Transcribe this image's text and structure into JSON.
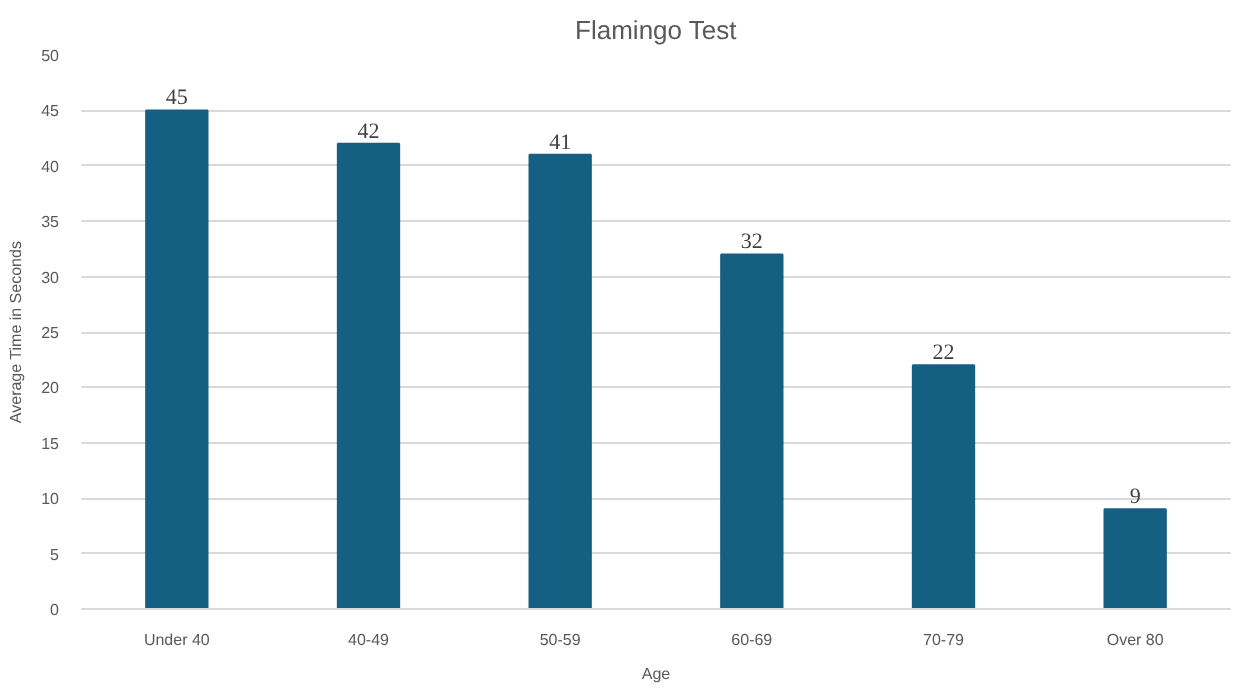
{
  "chart_data": {
    "type": "bar",
    "title": "Flamingo Test",
    "xlabel": "Age",
    "ylabel": "Average Time in Seconds",
    "categories": [
      "Under 40",
      "40-49",
      "50-59",
      "60-69",
      "70-79",
      "Over 80"
    ],
    "values": [
      45,
      42,
      41,
      32,
      22,
      9
    ],
    "color": "#156082",
    "ylim": [
      0,
      50
    ],
    "yticks": [
      0,
      5,
      10,
      15,
      20,
      25,
      30,
      35,
      40,
      45,
      50
    ],
    "grid": "y",
    "data_labels": true
  }
}
